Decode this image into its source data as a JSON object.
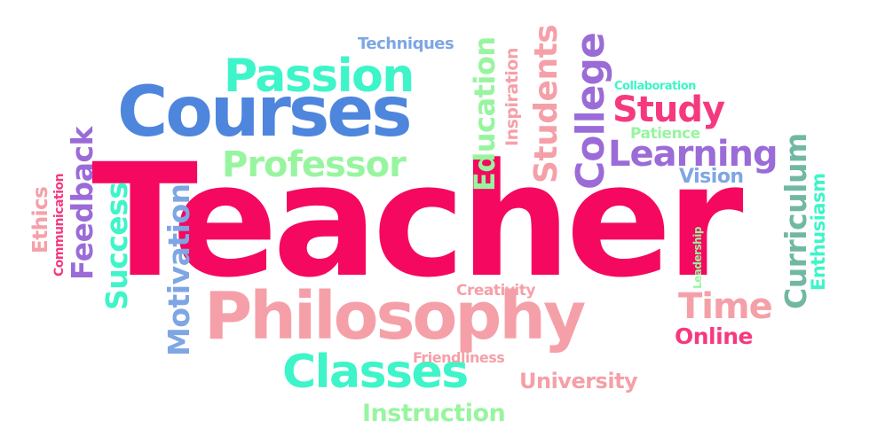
{
  "colors": {
    "pink": "#f5085f",
    "lightpink": "#f5a0a8",
    "blue": "#4f86dd",
    "lightblue": "#7ea6e3",
    "teal": "#3df5c8",
    "mint": "#98f59f",
    "purple": "#9b6bd8",
    "green": "#71b8a2"
  },
  "words": {
    "teacher": "Teacher",
    "courses": "Courses",
    "philosophy": "Philosophy",
    "passion": "Passion",
    "professor": "Professor",
    "classes": "Classes",
    "instruction": "Instruction",
    "techniques": "Techniques",
    "education": "Education",
    "inspiration": "Inspiration",
    "students": "Students",
    "college": "College",
    "collaboration": "Collaboration",
    "study": "Study",
    "patience": "Patience",
    "learning": "Learning",
    "vision": "Vision",
    "curriculum": "Curriculum",
    "enthusiasm": "Enthusiasm",
    "leadership": "Leadership",
    "time": "Time",
    "online": "Online",
    "creativity": "Creativity",
    "friendliness": "Friendliness",
    "university": "University",
    "motivation": "Motivation",
    "success": "Success",
    "feedback": "Feedback",
    "communication": "Communication",
    "ethics": "Ethics"
  }
}
